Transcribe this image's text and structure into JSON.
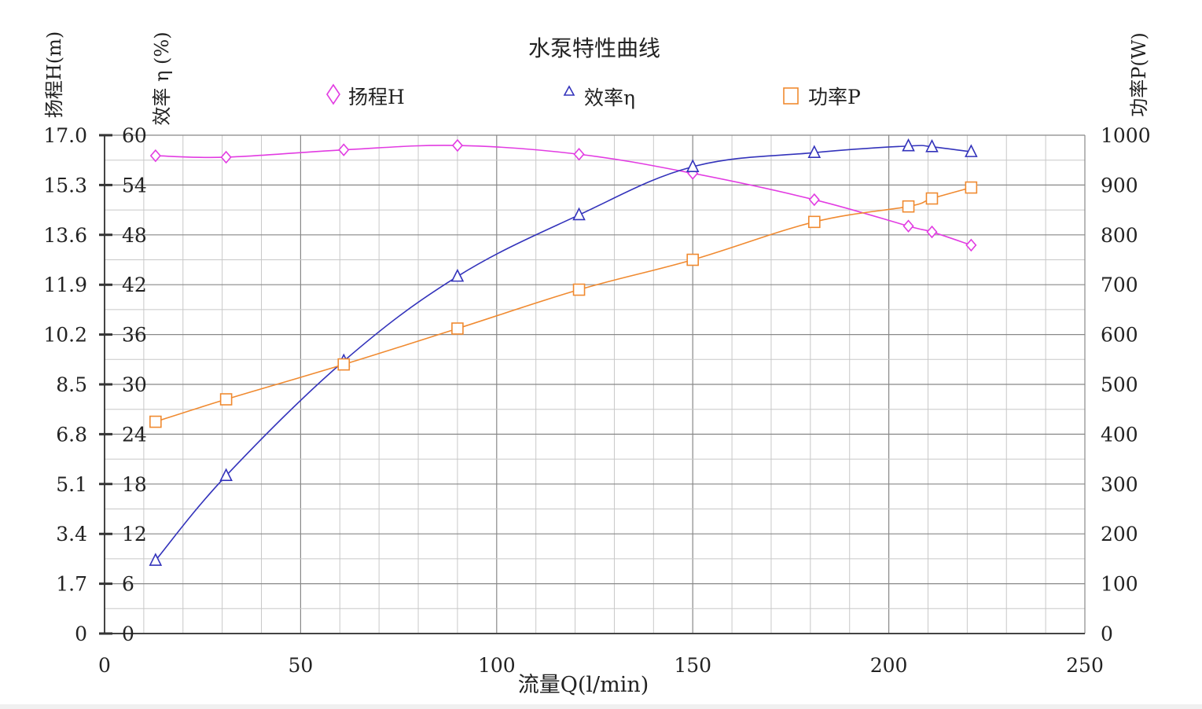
{
  "chart_data": {
    "type": "line",
    "title": "水泵特性曲线",
    "xlabel": "流量Q(l/min)",
    "xlim": [
      0,
      250
    ],
    "x_ticks": [
      "0",
      "50",
      "100",
      "150",
      "200",
      "250"
    ],
    "grid": true,
    "legend_position": "top-center",
    "axes": {
      "head": {
        "label": "扬程H(m)",
        "lim": [
          0,
          17
        ],
        "ticks": [
          "0",
          "1.7",
          "3.4",
          "5.1",
          "6.8",
          "8.5",
          "10.2",
          "11.9",
          "13.6",
          "15.3",
          "17.0"
        ]
      },
      "efficiency": {
        "label": "效率 η (%)",
        "lim": [
          0,
          60
        ],
        "ticks": [
          "0",
          "6",
          "12",
          "18",
          "24",
          "30",
          "36",
          "42",
          "48",
          "54",
          "60"
        ]
      },
      "power": {
        "label": "功率P(W)",
        "lim": [
          0,
          1000
        ],
        "ticks": [
          "0",
          "100",
          "200",
          "300",
          "400",
          "500",
          "600",
          "700",
          "800",
          "900",
          "1000"
        ]
      }
    },
    "series": [
      {
        "name": "扬程H",
        "axis": "head",
        "marker": "diamond",
        "color": "#e23ce2",
        "x": [
          13,
          31,
          61,
          90,
          121,
          150,
          181,
          205,
          211,
          221
        ],
        "y": [
          16.3,
          16.25,
          16.5,
          16.65,
          16.35,
          15.7,
          14.8,
          13.9,
          13.7,
          13.25
        ]
      },
      {
        "name": "效率η",
        "axis": "efficiency",
        "marker": "triangle",
        "color": "#3333bb",
        "x": [
          13,
          31,
          61,
          90,
          121,
          150,
          181,
          205,
          211,
          221
        ],
        "y": [
          8.8,
          19.0,
          32.8,
          43.0,
          50.4,
          56.2,
          57.9,
          58.7,
          58.6,
          58.0
        ]
      },
      {
        "name": "功率P",
        "axis": "power",
        "marker": "square",
        "color": "#f08a30",
        "x": [
          13,
          31,
          61,
          90,
          121,
          150,
          181,
          205,
          211,
          221
        ],
        "y": [
          425,
          470,
          540,
          612,
          690,
          750,
          826,
          857,
          873,
          895
        ]
      }
    ]
  }
}
